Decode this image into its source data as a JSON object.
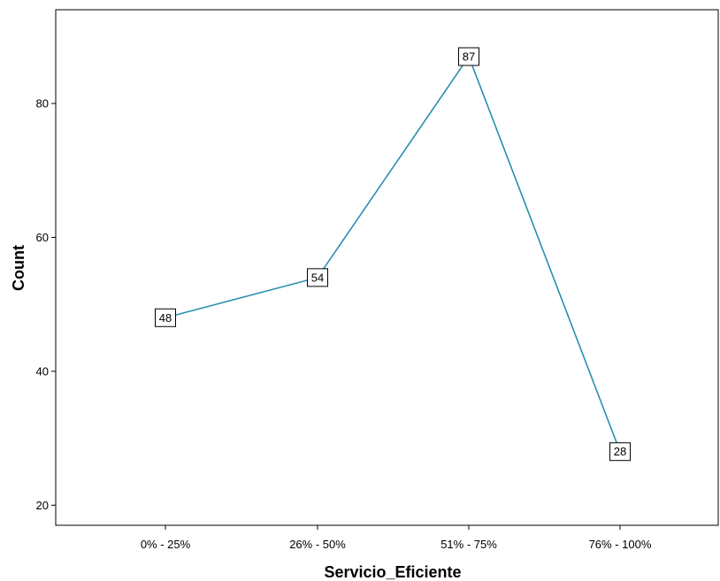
{
  "chart_data": {
    "type": "line",
    "title": "",
    "xlabel": "Servicio_Eficiente",
    "ylabel": "Count",
    "categories": [
      "0% - 25%",
      "26% - 50%",
      "51% - 75%",
      "76% - 100%"
    ],
    "series": [
      {
        "values": [
          48,
          54,
          87,
          28
        ]
      }
    ],
    "ylim": [
      17,
      94
    ],
    "yticks": [
      20,
      40,
      60,
      80
    ],
    "grid": false,
    "legend": "none",
    "data_labels": true,
    "colors": {
      "line": "#2a8fae",
      "axis": "#000000",
      "label_box_fill": "#ffffff"
    }
  }
}
